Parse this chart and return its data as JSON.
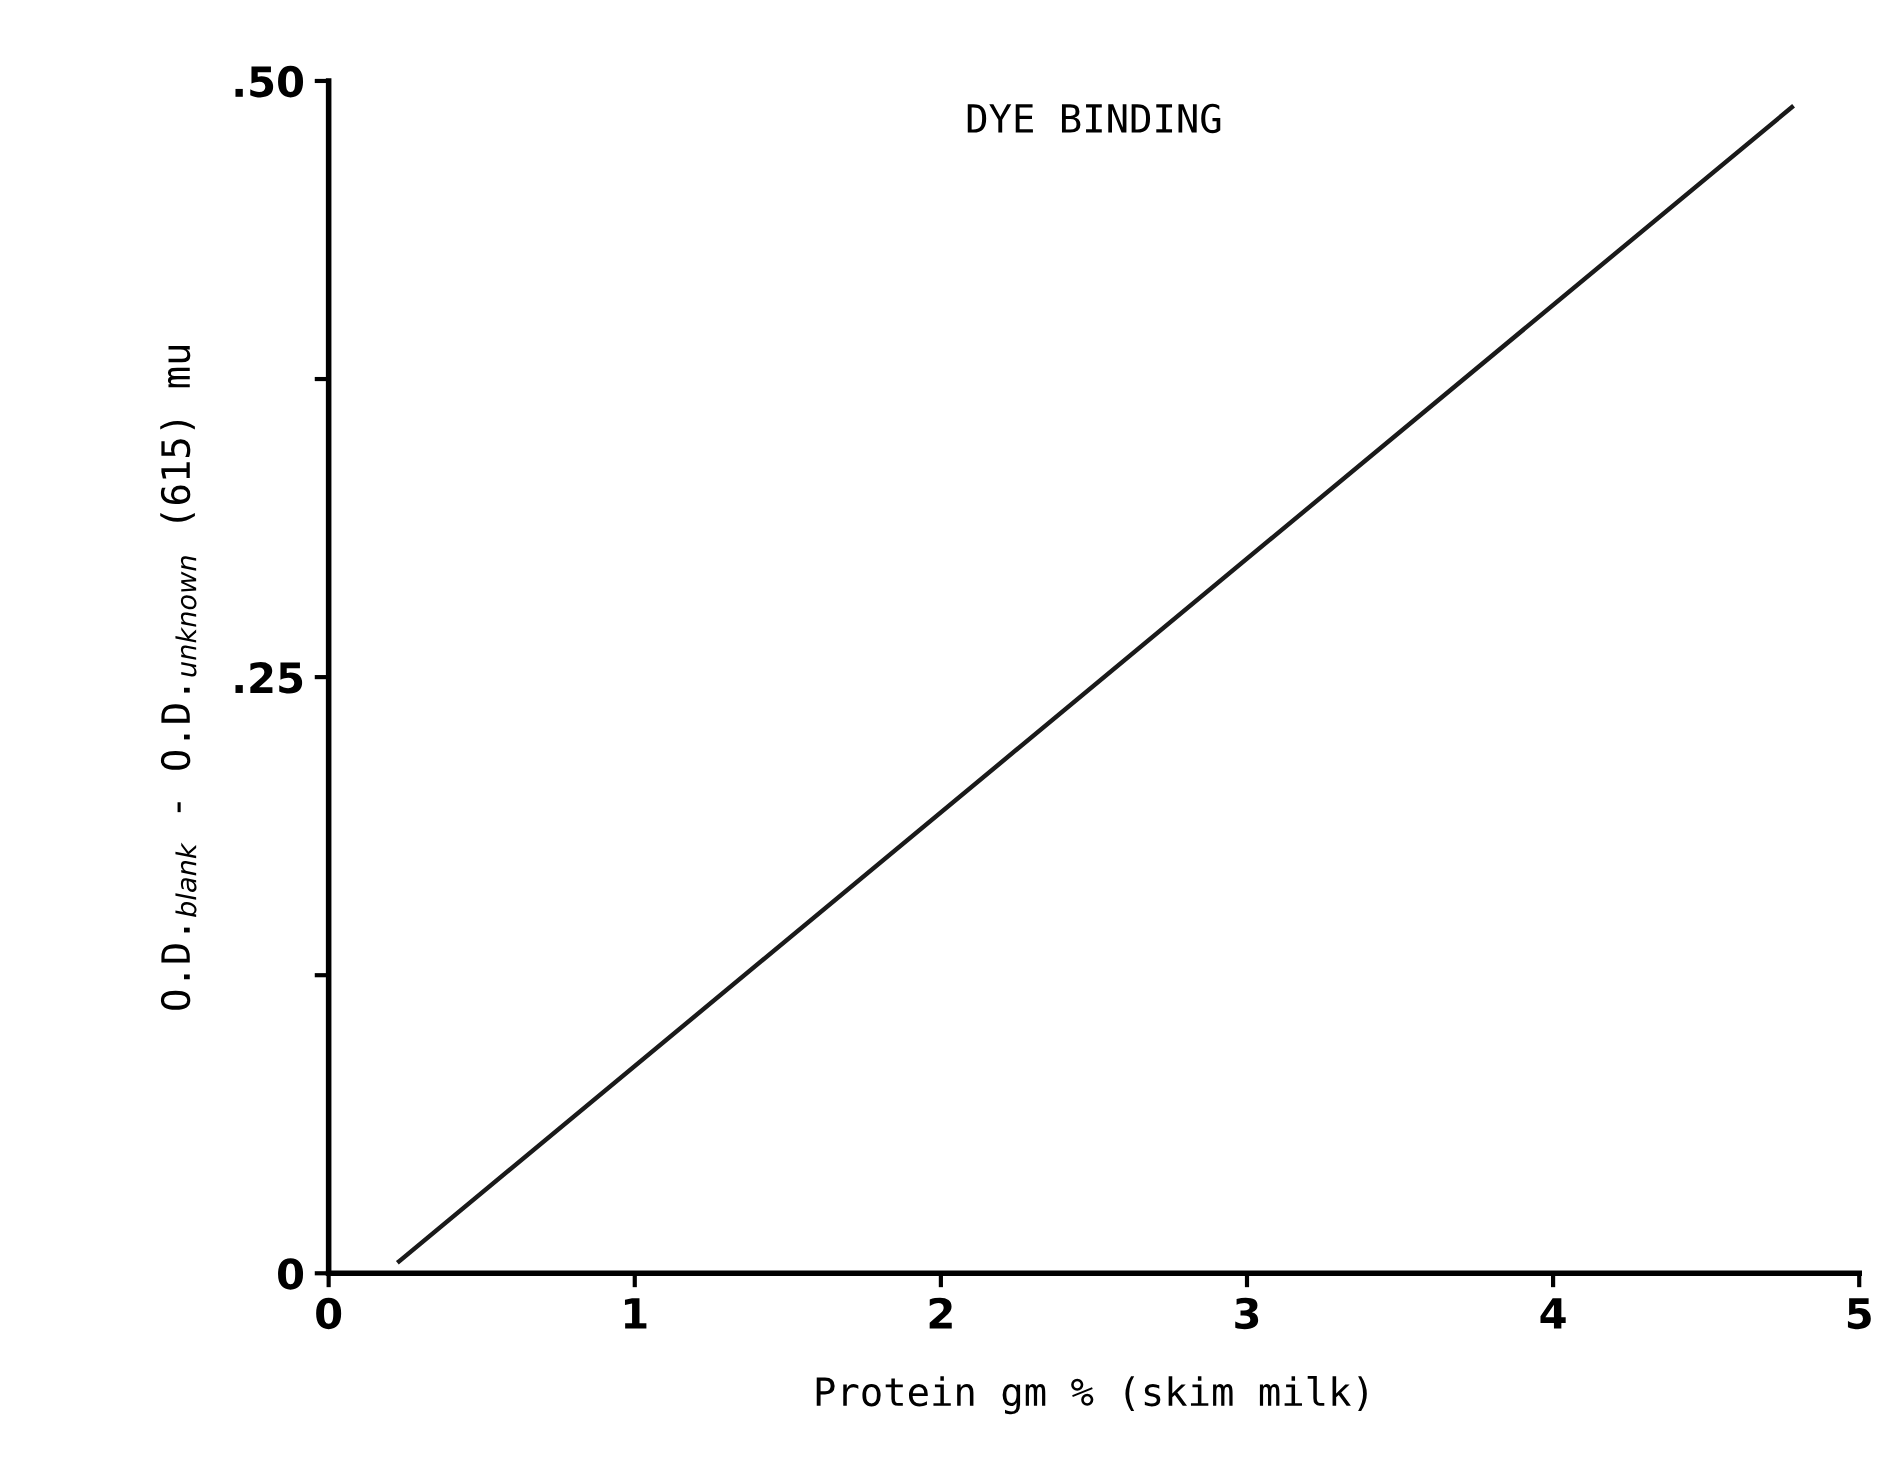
{
  "chart_data": {
    "type": "line",
    "title": "DYE BINDING",
    "xlabel": "Protein gm % (skim milk)",
    "ylabel": "O.D.$_{blank}$ - O.D.$_{unknown}$ (615) mu",
    "x": [
      0.23,
      4.78
    ],
    "series": [
      {
        "color": "#1a1a1a",
        "values": [
          0.005,
          0.489
        ]
      }
    ],
    "xlim": [
      0,
      5
    ],
    "xticks": [
      0,
      1,
      2,
      3,
      4,
      5
    ],
    "ylim": [
      0,
      0.5
    ],
    "yticks": [
      {
        "value": 0,
        "label": "0"
      },
      {
        "value": 0.125,
        "label": null
      },
      {
        "value": 0.25,
        "label": ".25"
      },
      {
        "value": 0.375,
        "label": null
      },
      {
        "value": 0.5,
        "label": ".50"
      }
    ],
    "grid": false,
    "legend": false,
    "marker": "none",
    "line_style": "solid"
  }
}
